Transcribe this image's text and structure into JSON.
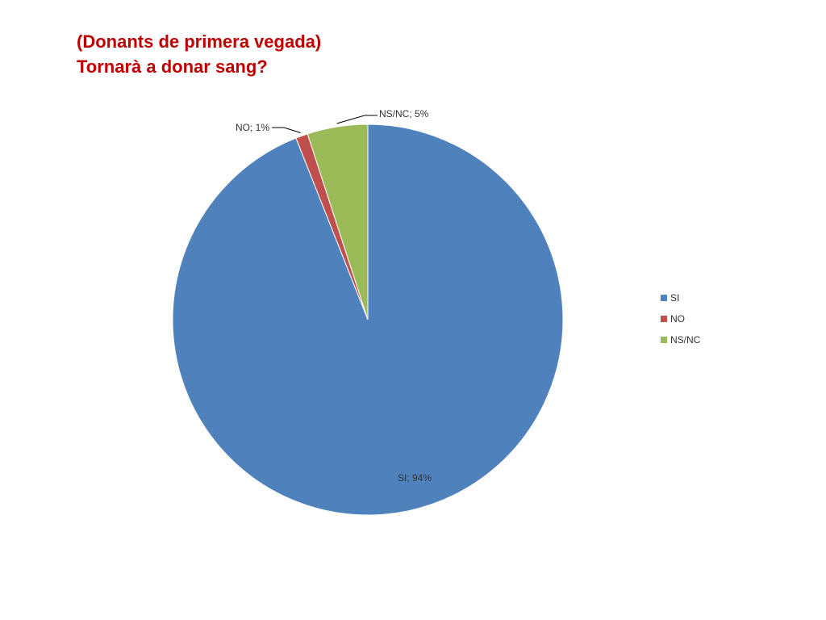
{
  "title": {
    "line1": "(Donants de primera vegada)",
    "line2": "Tornarà a donar sang?"
  },
  "chart_data": {
    "type": "pie",
    "categories": [
      "SI",
      "NO",
      "NS/NC"
    ],
    "values": [
      94,
      1,
      5
    ],
    "data_labels": [
      "SI; 94%",
      "NO; 1%",
      "NS/NC; 5%"
    ],
    "colors": [
      "#4f81bd",
      "#c0504d",
      "#9bbb59"
    ],
    "legend": {
      "entries": [
        "SI",
        "NO",
        "NS/NC"
      ],
      "placement": "right"
    },
    "start_angle": "12 o'clock",
    "direction": "clockwise"
  }
}
